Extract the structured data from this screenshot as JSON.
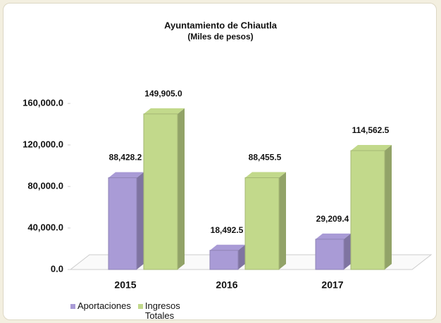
{
  "chart_data": {
    "type": "bar",
    "title": "Ayuntamiento de Chiautla",
    "subtitle": "(Miles de pesos)",
    "categories": [
      "2015",
      "2016",
      "2017"
    ],
    "series": [
      {
        "name": "Aportaciones",
        "color": "#a99bd6",
        "values": [
          88428.2,
          18492.5,
          29209.4
        ],
        "value_labels": [
          "88,428.2",
          "18,492.5",
          "29,209.4"
        ]
      },
      {
        "name": "Ingresos Totales",
        "color": "#c2d98b",
        "values": [
          149905.0,
          88455.5,
          114562.5
        ],
        "value_labels": [
          "149,905.0",
          "88,455.5",
          "114,562.5"
        ]
      }
    ],
    "ylim": [
      0,
      160000
    ],
    "yticks": [
      {
        "value": 0,
        "label": "0.0"
      },
      {
        "value": 40000,
        "label": "40,000.0"
      },
      {
        "value": 80000,
        "label": "80,000.0"
      },
      {
        "value": 120000,
        "label": "120,000.0"
      },
      {
        "value": 160000,
        "label": "160,000.0"
      }
    ],
    "legend": "bottom-left"
  }
}
